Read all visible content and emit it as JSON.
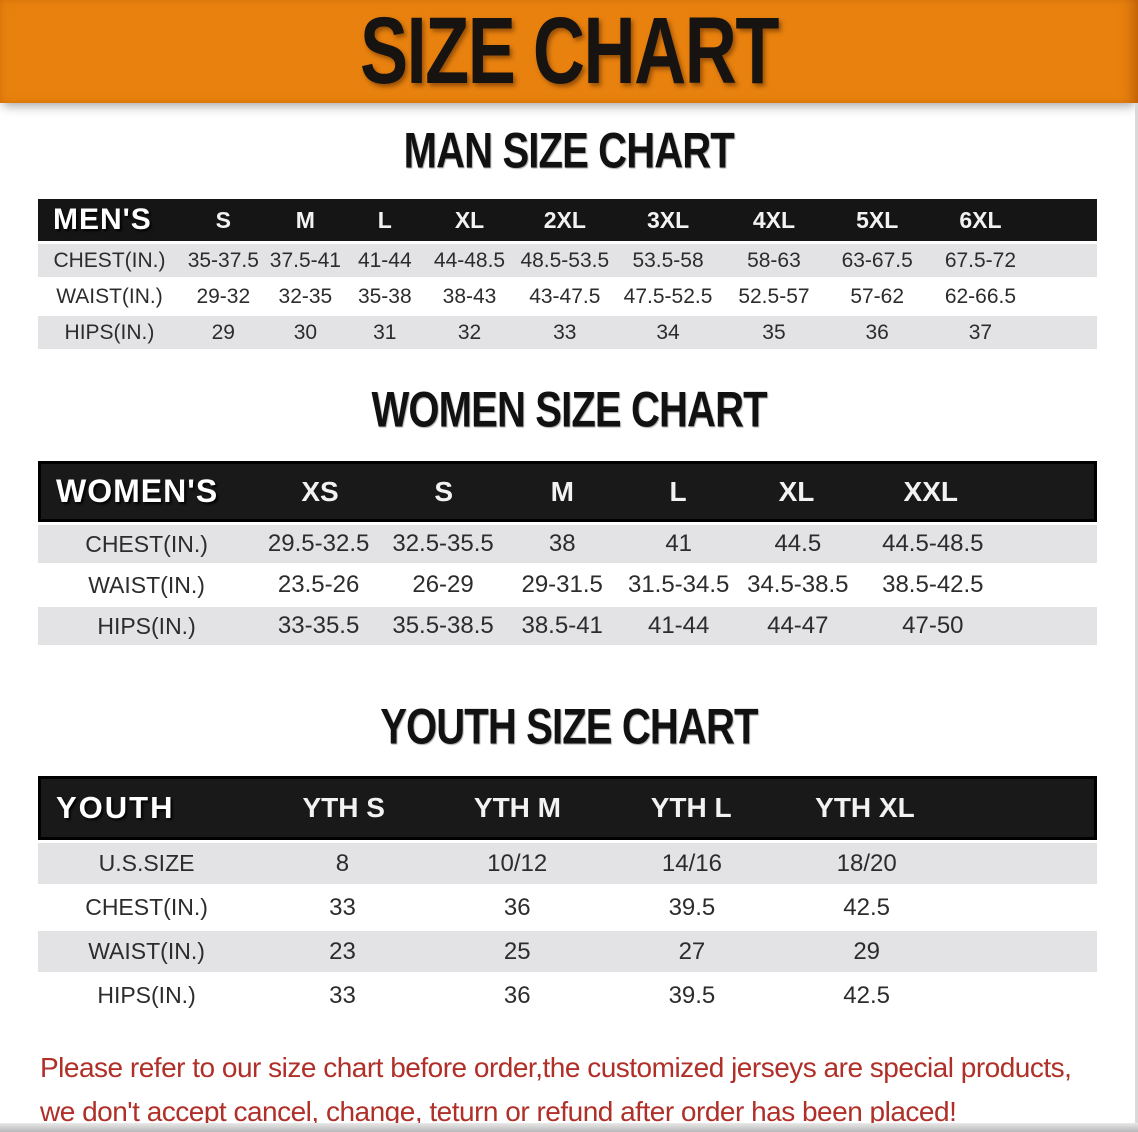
{
  "banner": {
    "title": "SIZE CHART"
  },
  "sections": [
    {
      "id": "men",
      "title": "MAN SIZE CHART",
      "group_label": "MEN'S",
      "sizes": [
        "S",
        "M",
        "L",
        "XL",
        "2XL",
        "3XL",
        "4XL",
        "5XL",
        "6XL"
      ],
      "rows": [
        {
          "label": "CHEST(IN.)",
          "values": [
            "35-37.5",
            "37.5-41",
            "41-44",
            "44-48.5",
            "48.5-53.5",
            "53.5-58",
            "58-63",
            "63-67.5",
            "67.5-72"
          ]
        },
        {
          "label": "WAIST(IN.)",
          "values": [
            "29-32",
            "32-35",
            "35-38",
            "38-43",
            "43-47.5",
            "47.5-52.5",
            "52.5-57",
            "57-62",
            "62-66.5"
          ]
        },
        {
          "label": "HIPS(IN.)",
          "values": [
            "29",
            "30",
            "31",
            "32",
            "33",
            "34",
            "35",
            "36",
            "37"
          ]
        }
      ]
    },
    {
      "id": "women",
      "title": "WOMEN SIZE CHART",
      "group_label": "WOMEN'S",
      "sizes": [
        "XS",
        "S",
        "M",
        "L",
        "XL",
        "XXL"
      ],
      "rows": [
        {
          "label": "CHEST(IN.)",
          "values": [
            "29.5-32.5",
            "32.5-35.5",
            "38",
            "41",
            "44.5",
            "44.5-48.5"
          ]
        },
        {
          "label": "WAIST(IN.)",
          "values": [
            "23.5-26",
            "26-29",
            "29-31.5",
            "31.5-34.5",
            "34.5-38.5",
            "38.5-42.5"
          ]
        },
        {
          "label": "HIPS(IN.)",
          "values": [
            "33-35.5",
            "35.5-38.5",
            "38.5-41",
            "41-44",
            "44-47",
            "47-50"
          ]
        }
      ]
    },
    {
      "id": "youth",
      "title": "YOUTH SIZE CHART",
      "group_label": "YOUTH",
      "sizes": [
        "YTH S",
        "YTH M",
        "YTH L",
        "YTH XL"
      ],
      "rows": [
        {
          "label": "U.S.SIZE",
          "values": [
            "8",
            "10/12",
            "14/16",
            "18/20"
          ]
        },
        {
          "label": "CHEST(IN.)",
          "values": [
            "33",
            "36",
            "39.5",
            "42.5"
          ]
        },
        {
          "label": "WAIST(IN.)",
          "values": [
            "23",
            "25",
            "27",
            "29"
          ]
        },
        {
          "label": "HIPS(IN.)",
          "values": [
            "33",
            "36",
            "39.5",
            "42.5"
          ]
        }
      ]
    }
  ],
  "notice": {
    "line1": "Please refer to our size chart before order,the customized jerseys are special products,",
    "line2": "we don't accept cancel, change, teturn or refund after order has been placed!"
  },
  "colors": {
    "banner_bg": "#e8810e",
    "header_bar_bg": "#151515",
    "row_alt_bg": "#e3e3e5",
    "notice_text": "#b02f28"
  }
}
